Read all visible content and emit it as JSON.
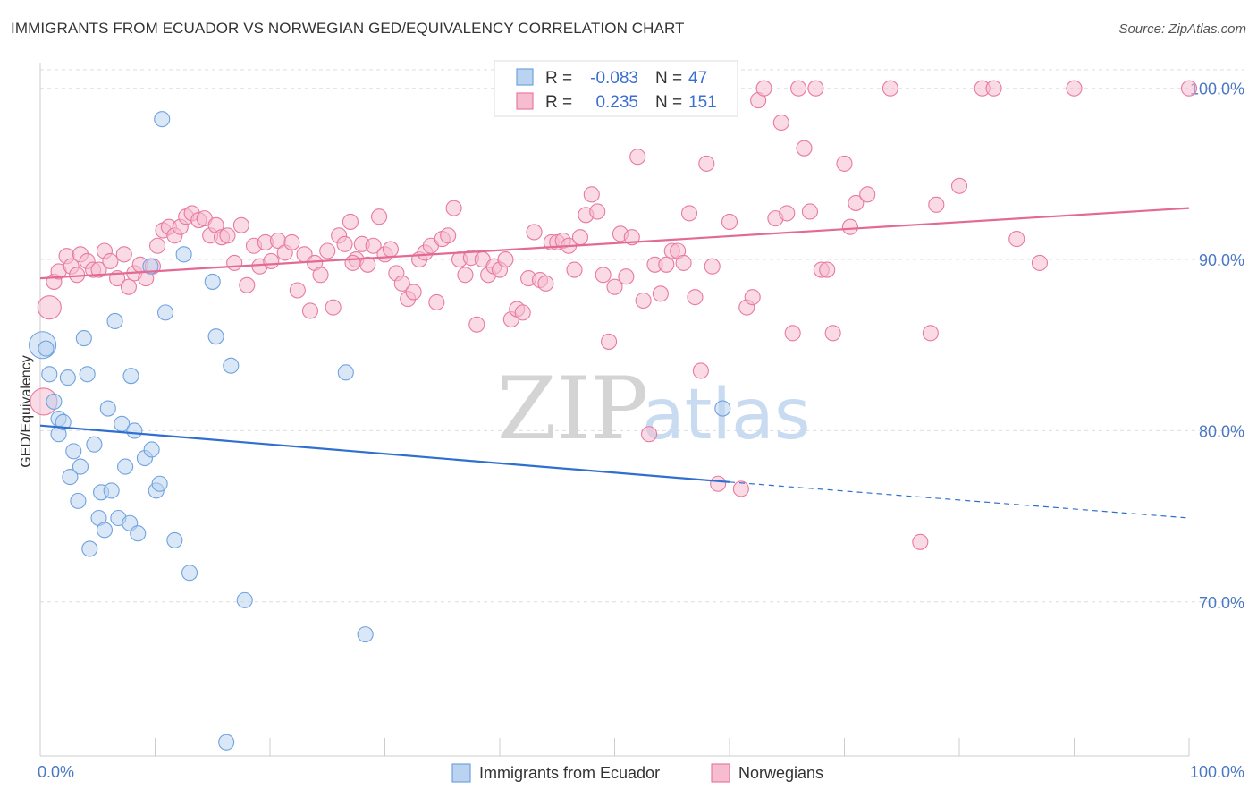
{
  "title": "IMMIGRANTS FROM ECUADOR VS NORWEGIAN GED/EQUIVALENCY CORRELATION CHART",
  "source": "Source: ZipAtlas.com",
  "watermark": {
    "zip": "ZIP",
    "atlas": "atlas"
  },
  "colors": {
    "blue": "#6fa3df",
    "blue_fill": "#b9d3f1",
    "pink": "#e87aa0",
    "pink_fill": "#f6bcd0",
    "blue_line": "#2f6fcf",
    "pink_line": "#e26a95",
    "tick": "#4a78c4"
  },
  "stats": [
    {
      "r_label": "R =",
      "r_value": "-0.083",
      "n_label": "N =",
      "n_value": "47"
    },
    {
      "r_label": "R =",
      "r_value": "0.235",
      "n_label": "N =",
      "n_value": "151"
    }
  ],
  "chart_data": {
    "type": "scatter",
    "title": "IMMIGRANTS FROM ECUADOR VS NORWEGIAN GED/EQUIVALENCY CORRELATION CHART",
    "xlabel": "",
    "ylabel": "GED/Equivalency",
    "xlim": [
      0,
      100
    ],
    "ylim": [
      61,
      101.5
    ],
    "x_tick_labels": [
      "0.0%",
      "100.0%"
    ],
    "y_ticks": [
      70,
      80,
      90,
      100
    ],
    "y_tick_labels": [
      "70.0%",
      "80.0%",
      "90.0%",
      "100.0%"
    ],
    "grid": true,
    "legend_position": "bottom-center",
    "series": [
      {
        "name": "Immigrants from Ecuador",
        "color": "#6fa3df",
        "trend": {
          "x": [
            0,
            60
          ],
          "y": [
            80.3,
            77.0
          ],
          "dashed_to": [
            100,
            74.9
          ]
        },
        "points": [
          [
            0.2,
            85.0,
            3
          ],
          [
            0.5,
            84.8,
            1
          ],
          [
            0.8,
            83.3,
            1
          ],
          [
            1.2,
            81.7,
            1
          ],
          [
            1.6,
            80.7,
            1
          ],
          [
            1.6,
            79.8,
            1
          ],
          [
            2.0,
            80.5,
            1
          ],
          [
            2.4,
            83.1,
            1
          ],
          [
            2.6,
            77.3,
            1
          ],
          [
            2.9,
            78.8,
            1
          ],
          [
            3.3,
            75.9,
            1
          ],
          [
            3.5,
            77.9,
            1
          ],
          [
            3.8,
            85.4,
            1
          ],
          [
            4.1,
            83.3,
            1
          ],
          [
            4.3,
            73.1,
            1
          ],
          [
            4.7,
            79.2,
            1
          ],
          [
            5.1,
            74.9,
            1
          ],
          [
            5.3,
            76.4,
            1
          ],
          [
            5.6,
            74.2,
            1
          ],
          [
            5.9,
            81.3,
            1
          ],
          [
            6.2,
            76.5,
            1
          ],
          [
            6.5,
            86.4,
            1
          ],
          [
            6.8,
            74.9,
            1
          ],
          [
            7.1,
            80.4,
            1
          ],
          [
            7.4,
            77.9,
            1
          ],
          [
            7.8,
            74.6,
            1
          ],
          [
            7.9,
            83.2,
            1
          ],
          [
            8.2,
            80.0,
            1
          ],
          [
            8.5,
            74.0,
            1
          ],
          [
            9.1,
            78.4,
            1
          ],
          [
            9.7,
            78.9,
            1
          ],
          [
            10.1,
            76.5,
            1
          ],
          [
            10.4,
            76.9,
            1
          ],
          [
            10.6,
            98.2,
            1
          ],
          [
            10.9,
            86.9,
            1
          ],
          [
            11.7,
            73.6,
            1
          ],
          [
            12.5,
            90.3,
            1
          ],
          [
            13.0,
            71.7,
            1
          ],
          [
            15.0,
            88.7,
            1
          ],
          [
            15.3,
            85.5,
            1
          ],
          [
            16.2,
            61.8,
            1
          ],
          [
            16.6,
            83.8,
            1
          ],
          [
            17.8,
            70.1,
            1
          ],
          [
            26.6,
            83.4,
            1
          ],
          [
            28.3,
            68.1,
            1
          ],
          [
            59.4,
            81.3,
            1
          ],
          [
            9.6,
            89.6,
            1
          ]
        ]
      },
      {
        "name": "Norwegians",
        "color": "#e87aa0",
        "trend": {
          "x": [
            0,
            100
          ],
          "y": [
            88.9,
            93.0
          ]
        },
        "points": [
          [
            0.3,
            81.7,
            3
          ],
          [
            0.8,
            87.2,
            2
          ],
          [
            1.2,
            88.7,
            1
          ],
          [
            1.6,
            89.3,
            1
          ],
          [
            2.3,
            90.2,
            1
          ],
          [
            2.7,
            89.6,
            1
          ],
          [
            3.2,
            89.1,
            1
          ],
          [
            3.5,
            90.3,
            1
          ],
          [
            4.1,
            89.9,
            1
          ],
          [
            4.6,
            89.4,
            1
          ],
          [
            5.1,
            89.4,
            1
          ],
          [
            5.6,
            90.5,
            1
          ],
          [
            6.1,
            89.9,
            1
          ],
          [
            6.7,
            88.9,
            1
          ],
          [
            7.3,
            90.3,
            1
          ],
          [
            7.7,
            88.4,
            1
          ],
          [
            8.2,
            89.2,
            1
          ],
          [
            8.7,
            89.7,
            1
          ],
          [
            9.2,
            88.9,
            1
          ],
          [
            9.8,
            89.6,
            1
          ],
          [
            10.2,
            90.8,
            1
          ],
          [
            10.7,
            91.7,
            1
          ],
          [
            11.2,
            91.9,
            1
          ],
          [
            11.7,
            91.4,
            1
          ],
          [
            12.2,
            91.9,
            1
          ],
          [
            12.7,
            92.5,
            1
          ],
          [
            13.2,
            92.7,
            1
          ],
          [
            13.8,
            92.3,
            1
          ],
          [
            14.3,
            92.4,
            1
          ],
          [
            14.8,
            91.4,
            1
          ],
          [
            15.3,
            92.0,
            1
          ],
          [
            15.8,
            91.3,
            1
          ],
          [
            16.3,
            91.4,
            1
          ],
          [
            16.9,
            89.8,
            1
          ],
          [
            17.5,
            92.0,
            1
          ],
          [
            18.0,
            88.5,
            1
          ],
          [
            18.6,
            90.8,
            1
          ],
          [
            19.1,
            89.6,
            1
          ],
          [
            19.6,
            91.0,
            1
          ],
          [
            20.1,
            89.9,
            1
          ],
          [
            20.7,
            91.1,
            1
          ],
          [
            21.3,
            90.4,
            1
          ],
          [
            21.9,
            91.0,
            1
          ],
          [
            22.4,
            88.2,
            1
          ],
          [
            23.0,
            90.3,
            1
          ],
          [
            23.5,
            87.0,
            1
          ],
          [
            23.9,
            89.8,
            1
          ],
          [
            24.4,
            89.1,
            1
          ],
          [
            25.0,
            90.5,
            1
          ],
          [
            25.5,
            87.2,
            1
          ],
          [
            26.0,
            91.4,
            1
          ],
          [
            26.5,
            90.9,
            1
          ],
          [
            27.0,
            92.2,
            1
          ],
          [
            27.5,
            90.0,
            1
          ],
          [
            28.0,
            90.9,
            1
          ],
          [
            28.5,
            89.7,
            1
          ],
          [
            29.0,
            90.8,
            1
          ],
          [
            29.5,
            92.5,
            1
          ],
          [
            30.0,
            90.3,
            1
          ],
          [
            30.5,
            90.6,
            1
          ],
          [
            31.0,
            89.2,
            1
          ],
          [
            31.5,
            88.6,
            1
          ],
          [
            32.0,
            87.7,
            1
          ],
          [
            32.5,
            88.1,
            1
          ],
          [
            33.0,
            90.0,
            1
          ],
          [
            33.5,
            90.4,
            1
          ],
          [
            34.0,
            90.8,
            1
          ],
          [
            34.5,
            87.5,
            1
          ],
          [
            35.0,
            91.2,
            1
          ],
          [
            35.5,
            91.4,
            1
          ],
          [
            36.0,
            93.0,
            1
          ],
          [
            36.5,
            90.0,
            1
          ],
          [
            37.0,
            89.1,
            1
          ],
          [
            37.5,
            90.1,
            1
          ],
          [
            38.0,
            86.2,
            1
          ],
          [
            38.5,
            90.0,
            1
          ],
          [
            39.0,
            89.1,
            1
          ],
          [
            39.5,
            89.6,
            1
          ],
          [
            40.0,
            89.4,
            1
          ],
          [
            40.5,
            90.0,
            1
          ],
          [
            41.0,
            86.5,
            1
          ],
          [
            41.5,
            87.1,
            1
          ],
          [
            42.0,
            86.9,
            1
          ],
          [
            42.5,
            88.9,
            1
          ],
          [
            43.0,
            91.6,
            1
          ],
          [
            43.5,
            88.8,
            1
          ],
          [
            44.0,
            88.6,
            1
          ],
          [
            44.5,
            91.0,
            1
          ],
          [
            45.0,
            91.0,
            1
          ],
          [
            45.5,
            91.1,
            1
          ],
          [
            46.0,
            90.8,
            1
          ],
          [
            46.5,
            89.4,
            1
          ],
          [
            47.0,
            91.3,
            1
          ],
          [
            47.5,
            92.6,
            1
          ],
          [
            48.0,
            93.8,
            1
          ],
          [
            48.5,
            92.8,
            1
          ],
          [
            49.0,
            89.1,
            1
          ],
          [
            49.5,
            85.2,
            1
          ],
          [
            50.0,
            88.4,
            1
          ],
          [
            50.5,
            91.5,
            1
          ],
          [
            51.0,
            89.0,
            1
          ],
          [
            51.5,
            91.3,
            1
          ],
          [
            52.0,
            96.0,
            1
          ],
          [
            52.5,
            87.6,
            1
          ],
          [
            53.0,
            79.8,
            1
          ],
          [
            53.5,
            89.7,
            1
          ],
          [
            54.0,
            88.0,
            1
          ],
          [
            54.5,
            89.7,
            1
          ],
          [
            55.0,
            90.5,
            1
          ],
          [
            55.5,
            90.5,
            1
          ],
          [
            56.0,
            89.8,
            1
          ],
          [
            56.5,
            92.7,
            1
          ],
          [
            57.0,
            87.8,
            1
          ],
          [
            57.5,
            83.5,
            1
          ],
          [
            58.0,
            95.6,
            1
          ],
          [
            58.5,
            89.6,
            1
          ],
          [
            59.0,
            76.9,
            1
          ],
          [
            59.5,
            100.0,
            1
          ],
          [
            60.0,
            92.2,
            1
          ],
          [
            61.0,
            76.6,
            1
          ],
          [
            61.5,
            87.2,
            1
          ],
          [
            62.0,
            87.8,
            1
          ],
          [
            62.5,
            99.3,
            1
          ],
          [
            63.0,
            100.0,
            1
          ],
          [
            64.0,
            92.4,
            1
          ],
          [
            64.5,
            98.0,
            1
          ],
          [
            65.0,
            92.7,
            1
          ],
          [
            65.5,
            85.7,
            1
          ],
          [
            66.0,
            100.0,
            1
          ],
          [
            66.5,
            96.5,
            1
          ],
          [
            67.0,
            92.8,
            1
          ],
          [
            67.5,
            100.0,
            1
          ],
          [
            68.0,
            89.4,
            1
          ],
          [
            68.5,
            89.4,
            1
          ],
          [
            69.0,
            85.7,
            1
          ],
          [
            70.0,
            95.6,
            1
          ],
          [
            70.5,
            91.9,
            1
          ],
          [
            71.0,
            93.3,
            1
          ],
          [
            72.0,
            93.8,
            1
          ],
          [
            74.0,
            100.0,
            1
          ],
          [
            77.5,
            85.7,
            1
          ],
          [
            78.0,
            93.2,
            1
          ],
          [
            80.0,
            94.3,
            1
          ],
          [
            82.0,
            100.0,
            1
          ],
          [
            83.0,
            100.0,
            1
          ],
          [
            85.0,
            91.2,
            1
          ],
          [
            87.0,
            89.8,
            1
          ],
          [
            90.0,
            100.0,
            1
          ],
          [
            100.0,
            100.0,
            1
          ],
          [
            76.6,
            73.5,
            1
          ],
          [
            27.2,
            89.8,
            1
          ]
        ]
      }
    ]
  },
  "legend": [
    {
      "label": "Immigrants from Ecuador"
    },
    {
      "label": "Norwegians"
    }
  ]
}
